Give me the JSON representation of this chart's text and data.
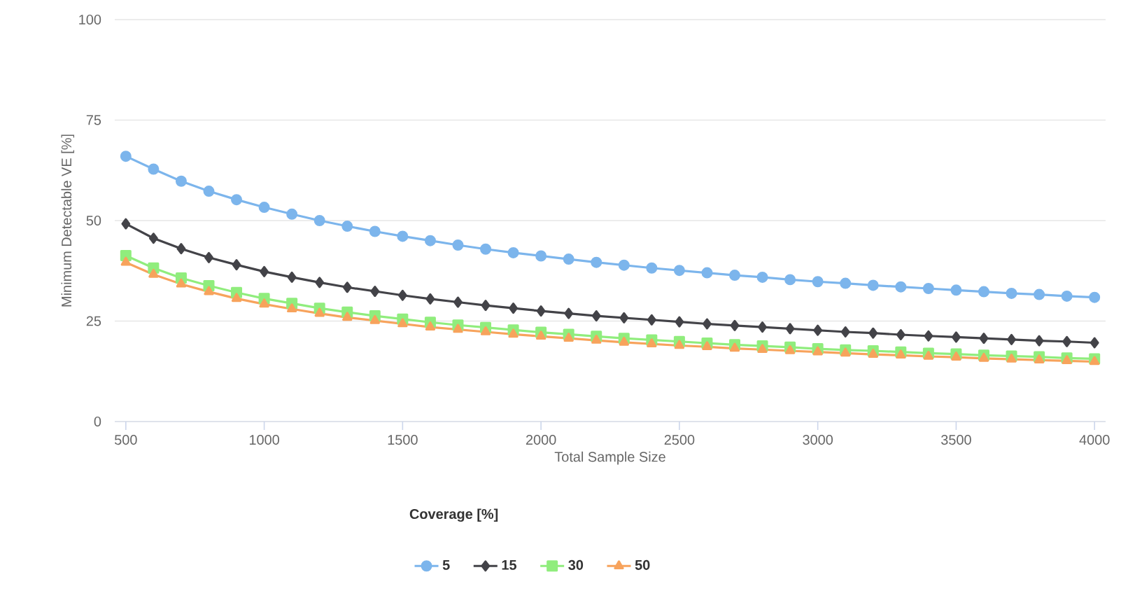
{
  "chart_data": {
    "type": "line",
    "xlabel": "Total Sample Size",
    "ylabel": "Minimum Detectable VE [%]",
    "legend_title": "Coverage [%]",
    "x": [
      500,
      600,
      700,
      800,
      900,
      1000,
      1100,
      1200,
      1300,
      1400,
      1500,
      1600,
      1700,
      1800,
      1900,
      2000,
      2100,
      2200,
      2300,
      2400,
      2500,
      2600,
      2700,
      2800,
      2900,
      3000,
      3100,
      3200,
      3300,
      3400,
      3500,
      3600,
      3700,
      3800,
      3900,
      4000
    ],
    "series": [
      {
        "name": "5",
        "color": "#7cb5ec",
        "marker": "circle",
        "values": [
          66,
          62.8,
          59.8,
          57.3,
          55.2,
          53.3,
          51.6,
          50,
          48.6,
          47.3,
          46.1,
          45,
          43.9,
          42.9,
          42,
          41.2,
          40.4,
          39.6,
          38.9,
          38.2,
          37.6,
          37,
          36.4,
          35.9,
          35.3,
          34.8,
          34.4,
          33.9,
          33.5,
          33.1,
          32.7,
          32.3,
          31.9,
          31.6,
          31.2,
          30.9
        ]
      },
      {
        "name": "15",
        "color": "#434348",
        "marker": "diamond",
        "values": [
          49.2,
          45.6,
          43,
          40.8,
          39,
          37.3,
          35.9,
          34.6,
          33.4,
          32.4,
          31.4,
          30.5,
          29.7,
          28.9,
          28.2,
          27.5,
          26.9,
          26.3,
          25.8,
          25.3,
          24.8,
          24.3,
          23.9,
          23.5,
          23.1,
          22.7,
          22.3,
          22,
          21.6,
          21.3,
          21,
          20.7,
          20.4,
          20.1,
          19.9,
          19.6
        ]
      },
      {
        "name": "30",
        "color": "#90ed7d",
        "marker": "square",
        "values": [
          41.3,
          38.2,
          35.7,
          33.8,
          32.1,
          30.6,
          29.4,
          28.2,
          27.2,
          26.3,
          25.5,
          24.7,
          24,
          23.4,
          22.8,
          22.2,
          21.7,
          21.2,
          20.7,
          20.3,
          19.9,
          19.5,
          19.1,
          18.8,
          18.5,
          18.1,
          17.8,
          17.6,
          17.3,
          17,
          16.8,
          16.5,
          16.3,
          16.1,
          15.8,
          15.6
        ]
      },
      {
        "name": "50",
        "color": "#f7a35c",
        "marker": "triangle",
        "values": [
          39.6,
          36.6,
          34.2,
          32.3,
          30.6,
          29.2,
          28,
          26.9,
          25.9,
          25.1,
          24.3,
          23.5,
          22.9,
          22.3,
          21.7,
          21.2,
          20.7,
          20.2,
          19.7,
          19.3,
          18.9,
          18.6,
          18.2,
          17.9,
          17.6,
          17.3,
          17,
          16.7,
          16.5,
          16.2,
          16,
          15.7,
          15.5,
          15.3,
          15.1,
          14.9
        ]
      }
    ],
    "xlim": [
      460,
      4040
    ],
    "ylim": [
      0,
      100
    ],
    "xticks": [
      500,
      1000,
      1500,
      2000,
      2500,
      3000,
      3500,
      4000
    ],
    "yticks": [
      0,
      25,
      50,
      75,
      100
    ],
    "grid": "y",
    "legend": "bottom",
    "line_style": "solid"
  }
}
